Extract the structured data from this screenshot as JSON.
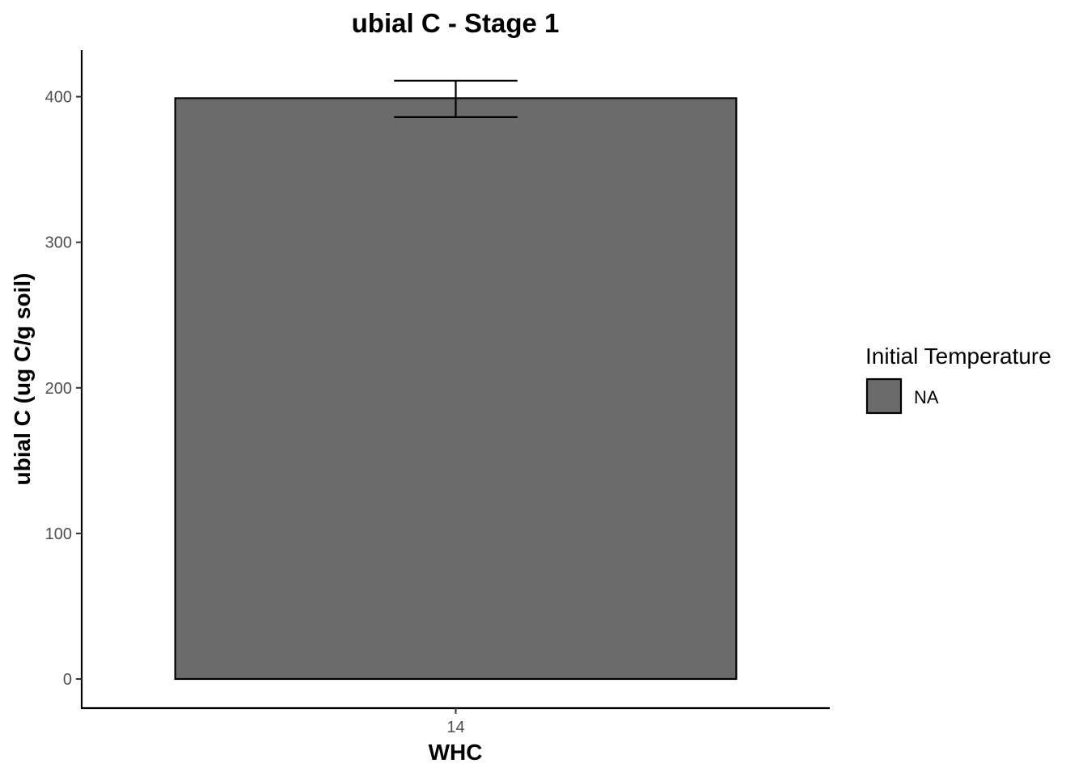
{
  "chart_data": {
    "type": "bar",
    "title": "ubial C - Stage 1",
    "xlabel": "WHC",
    "ylabel": "ubial C (ug C/g soil)",
    "categories": [
      "14"
    ],
    "series": [
      {
        "name": "NA",
        "values": [
          399
        ],
        "error_low": [
          386
        ],
        "error_high": [
          411
        ]
      }
    ],
    "ylim": [
      -20,
      432
    ],
    "yticks": [
      0,
      100,
      200,
      300,
      400
    ],
    "grid": false,
    "legend": {
      "title": "Initial Temperature",
      "position": "right",
      "entries": [
        "NA"
      ]
    },
    "bar_fill": "#6b6b6b",
    "outline_color": "#000000"
  }
}
